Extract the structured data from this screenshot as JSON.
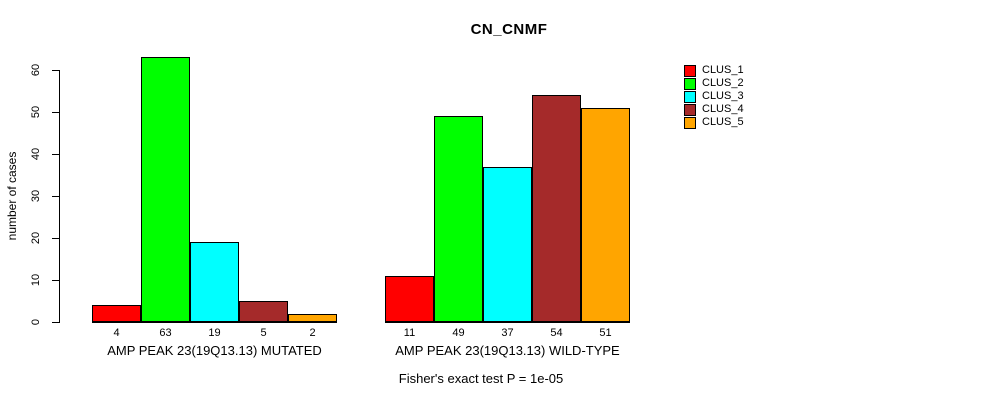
{
  "chart_data": {
    "type": "bar",
    "title": "CN_CNMF",
    "ylabel": "number of cases",
    "ylim": [
      0,
      63
    ],
    "yticks": [
      0,
      10,
      20,
      30,
      40,
      50,
      60
    ],
    "categories": [
      "AMP PEAK 23(19Q13.13) MUTATED",
      "AMP PEAK 23(19Q13.13) WILD-TYPE"
    ],
    "series": [
      {
        "name": "CLUS_1",
        "color": "#FF0000",
        "values": [
          4,
          11
        ]
      },
      {
        "name": "CLUS_2",
        "color": "#00FF00",
        "values": [
          63,
          49
        ]
      },
      {
        "name": "CLUS_3",
        "color": "#00FFFF",
        "values": [
          19,
          37
        ]
      },
      {
        "name": "CLUS_4",
        "color": "#A52A2A",
        "values": [
          5,
          54
        ]
      },
      {
        "name": "CLUS_5",
        "color": "#FFA500",
        "values": [
          2,
          51
        ]
      }
    ],
    "legend_position": "right",
    "grid": false,
    "bar_value_labels": true,
    "annotation": "Fisher's exact test P = 1e-05",
    "background_color": "#FFFFFF",
    "axis_color": "#000000"
  }
}
